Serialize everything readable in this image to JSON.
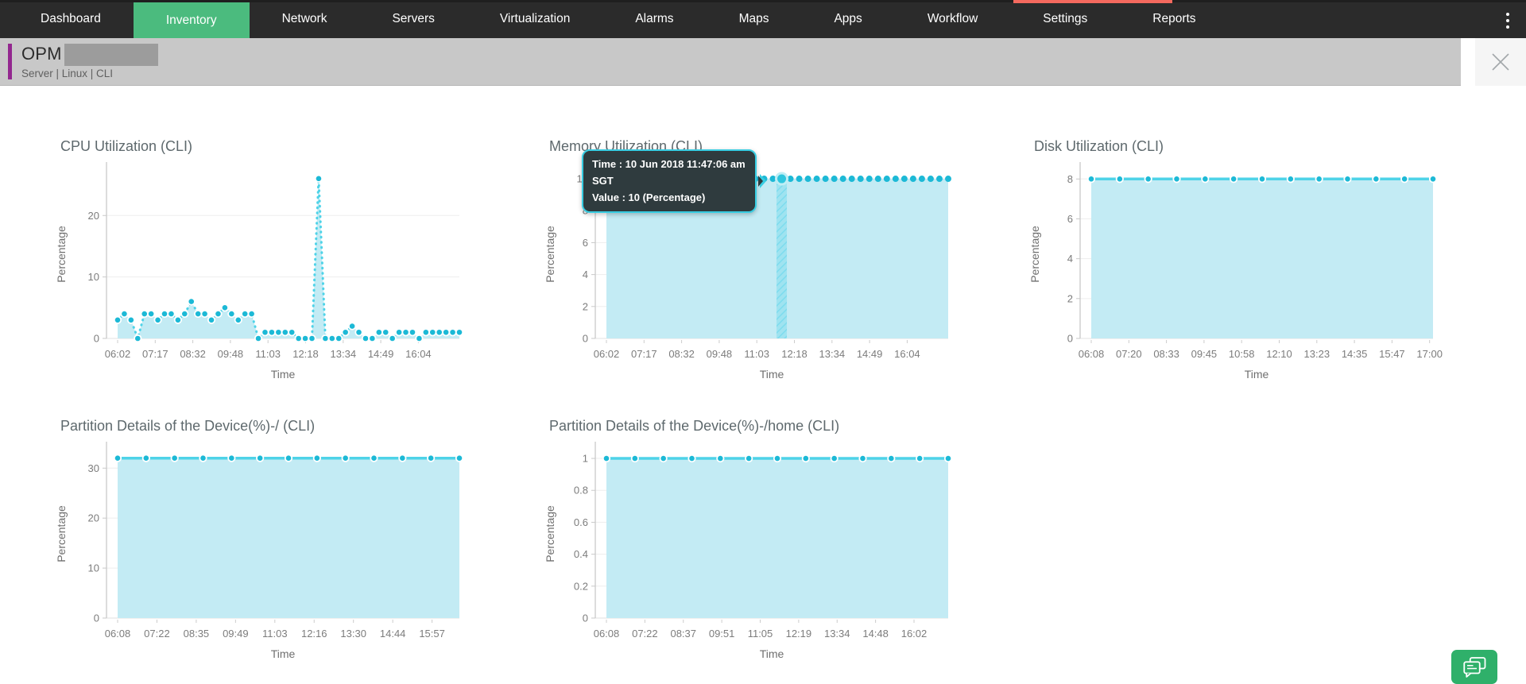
{
  "nav": {
    "items": [
      {
        "label": "Dashboard",
        "active": false
      },
      {
        "label": "Inventory",
        "active": true
      },
      {
        "label": "Network",
        "active": false
      },
      {
        "label": "Servers",
        "active": false
      },
      {
        "label": "Virtualization",
        "active": false
      },
      {
        "label": "Alarms",
        "active": false
      },
      {
        "label": "Maps",
        "active": false
      },
      {
        "label": "Apps",
        "active": false
      },
      {
        "label": "Workflow",
        "active": false
      },
      {
        "label": "Settings",
        "active": false
      },
      {
        "label": "Reports",
        "active": false
      }
    ],
    "active_color": "#4bbb7e",
    "background_color": "#2b2b2b",
    "notification_strip_color": "#f4695e"
  },
  "header": {
    "title": "OPM",
    "subtitle": "Server | Linux  | CLI",
    "accent_color": "#93278f",
    "background_color": "#c8c8c8"
  },
  "tooltip": {
    "line1": "Time : 10 Jun 2018 11:47:06 am",
    "line2": "SGT",
    "line3": "Value : 10 (Percentage)"
  },
  "colors": {
    "area_fill": "#c3ebf4",
    "line": "#4ed3e8",
    "dot": "#1cb9d6",
    "hover_band": "#7edcee",
    "grid": "#ededed",
    "axis": "#c9c9c9"
  },
  "chart_data": [
    {
      "type": "area",
      "title": "CPU Utilization (CLI)",
      "xlabel": "Time",
      "ylabel": "Percentage",
      "yticks": [
        0,
        10,
        20
      ],
      "ylim": [
        0,
        27.4
      ],
      "xticklabels": [
        "06:02",
        "07:17",
        "08:32",
        "09:48",
        "11:03",
        "12:18",
        "13:34",
        "14:49",
        "16:04"
      ],
      "last_tick_frac": 0.88,
      "style": "dashed",
      "legend": "off",
      "grid": "on",
      "values": [
        3,
        4,
        3,
        0,
        4,
        4,
        3,
        4,
        4,
        3,
        4,
        6,
        4,
        4,
        3,
        4,
        5,
        4,
        3,
        4,
        4,
        0,
        1,
        1,
        1,
        1,
        1,
        0,
        0,
        0,
        26,
        0,
        0,
        0,
        1,
        2,
        1,
        0,
        0,
        1,
        1,
        0,
        1,
        1,
        1,
        0,
        1,
        1,
        1,
        1,
        1,
        1
      ]
    },
    {
      "type": "area",
      "title": "Memory Utilization (CLI)",
      "xlabel": "Time",
      "ylabel": "Percentage",
      "yticks": [
        0,
        2,
        4,
        6,
        8,
        10
      ],
      "ylim": [
        0,
        10.55
      ],
      "xticklabels": [
        "06:02",
        "07:17",
        "08:32",
        "09:48",
        "11:03",
        "12:18",
        "13:34",
        "14:49",
        "16:04"
      ],
      "last_tick_frac": 0.88,
      "style": "dots",
      "legend": "off",
      "grid": "on",
      "values": [
        10,
        10,
        10,
        10,
        10,
        10,
        10,
        10,
        10,
        10,
        10,
        10,
        10,
        10,
        10,
        10,
        10,
        10,
        10,
        10,
        10,
        10,
        10,
        10,
        10,
        10,
        10,
        10,
        10,
        10,
        10,
        10,
        10,
        10,
        10,
        10,
        10,
        10,
        10,
        10
      ],
      "hover": {
        "index": 20,
        "value": 10,
        "time": "10 Jun 2018 11:47:06 am SGT"
      }
    },
    {
      "type": "area",
      "title": "Disk Utilization (CLI)",
      "xlabel": "Time",
      "ylabel": "Percentage",
      "yticks": [
        0,
        2,
        4,
        6,
        8
      ],
      "ylim": [
        0,
        8.45
      ],
      "xticklabels": [
        "06:08",
        "07:20",
        "08:33",
        "09:45",
        "10:58",
        "12:10",
        "13:23",
        "14:35",
        "15:47",
        "17:00"
      ],
      "last_tick_frac": 0.99,
      "style": "solid",
      "legend": "off",
      "grid": "on",
      "values": [
        8,
        8,
        8,
        8,
        8,
        8,
        8,
        8,
        8,
        8,
        8,
        8,
        8
      ]
    },
    {
      "type": "area",
      "title": "Partition Details of the Device(%)-/ (CLI)",
      "xlabel": "Time",
      "ylabel": "Percentage",
      "yticks": [
        0,
        10,
        20,
        30
      ],
      "ylim": [
        0,
        33.7
      ],
      "xticklabels": [
        "06:08",
        "07:22",
        "08:35",
        "09:49",
        "11:03",
        "12:16",
        "13:30",
        "14:44",
        "15:57"
      ],
      "last_tick_frac": 0.92,
      "style": "solid",
      "legend": "off",
      "grid": "on",
      "values": [
        32,
        32,
        32,
        32,
        32,
        32,
        32,
        32,
        32,
        32,
        32,
        32,
        32
      ]
    },
    {
      "type": "area",
      "title": "Partition Details of the Device(%)-/home (CLI)",
      "xlabel": "Time",
      "ylabel": "Percentage",
      "yticks": [
        0,
        0.2,
        0.4,
        0.6,
        0.8,
        1
      ],
      "ylim": [
        0,
        1.055
      ],
      "xticklabels": [
        "06:08",
        "07:22",
        "08:37",
        "09:51",
        "11:05",
        "12:19",
        "13:34",
        "14:48",
        "16:02"
      ],
      "last_tick_frac": 0.9,
      "style": "solid",
      "legend": "off",
      "grid": "on",
      "values": [
        1,
        1,
        1,
        1,
        1,
        1,
        1,
        1,
        1,
        1,
        1,
        1,
        1
      ]
    }
  ]
}
